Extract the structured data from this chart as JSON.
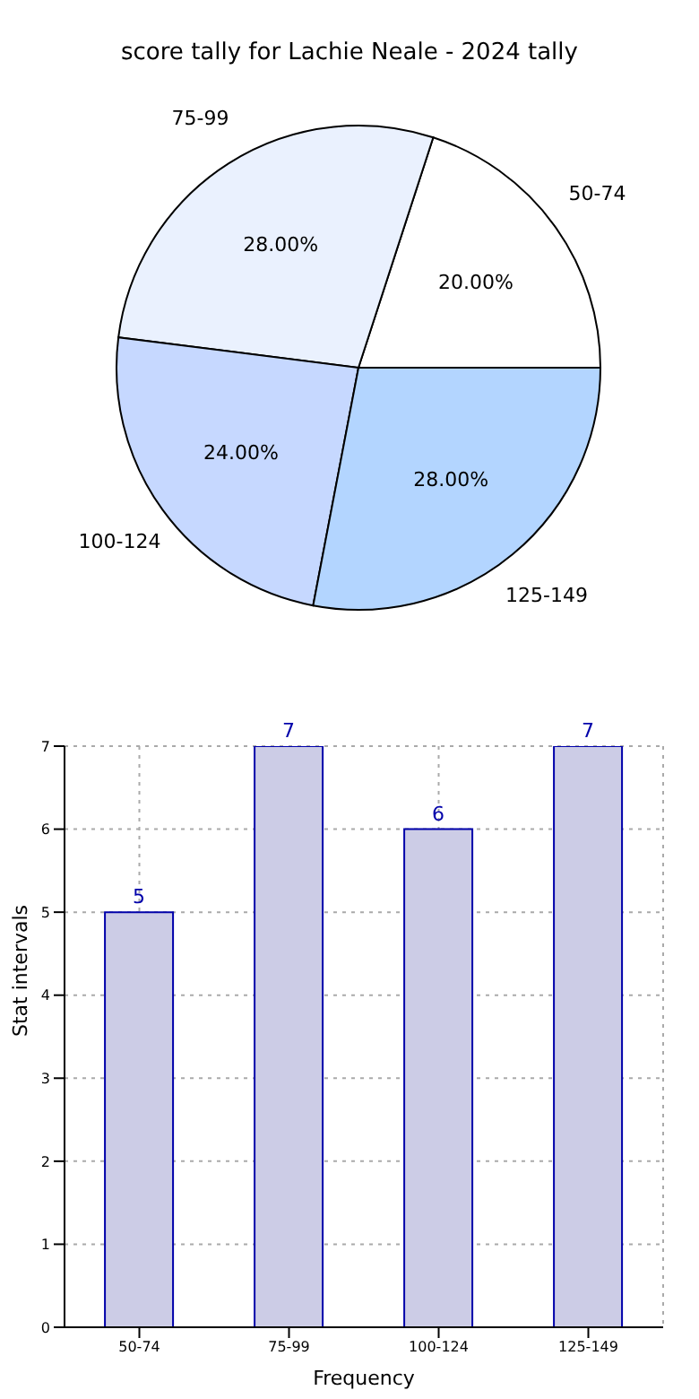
{
  "chart_data": [
    {
      "type": "pie",
      "title": "score tally for Lachie Neale - 2024 tally",
      "categories": [
        "50-74",
        "75-99",
        "100-124",
        "125-149"
      ],
      "values": [
        20,
        28,
        24,
        28
      ],
      "value_labels": [
        "20.00%",
        "28.00%",
        "24.00%",
        "28.00%"
      ],
      "colors": [
        "#ffffff",
        "#eaf1fe",
        "#c6d8ff",
        "#b3d5ff"
      ],
      "legend": false
    },
    {
      "type": "bar",
      "categories": [
        "50-74",
        "75-99",
        "100-124",
        "125-149"
      ],
      "values": [
        5,
        7,
        6,
        7
      ],
      "color": "#cccce6",
      "xlabel": "Frequency",
      "ylabel": "Stat intervals",
      "ylim": [
        0,
        7
      ],
      "yticks": [
        0,
        1,
        2,
        3,
        4,
        5,
        6,
        7
      ],
      "grid": true,
      "data_labels": true,
      "legend": false
    }
  ]
}
